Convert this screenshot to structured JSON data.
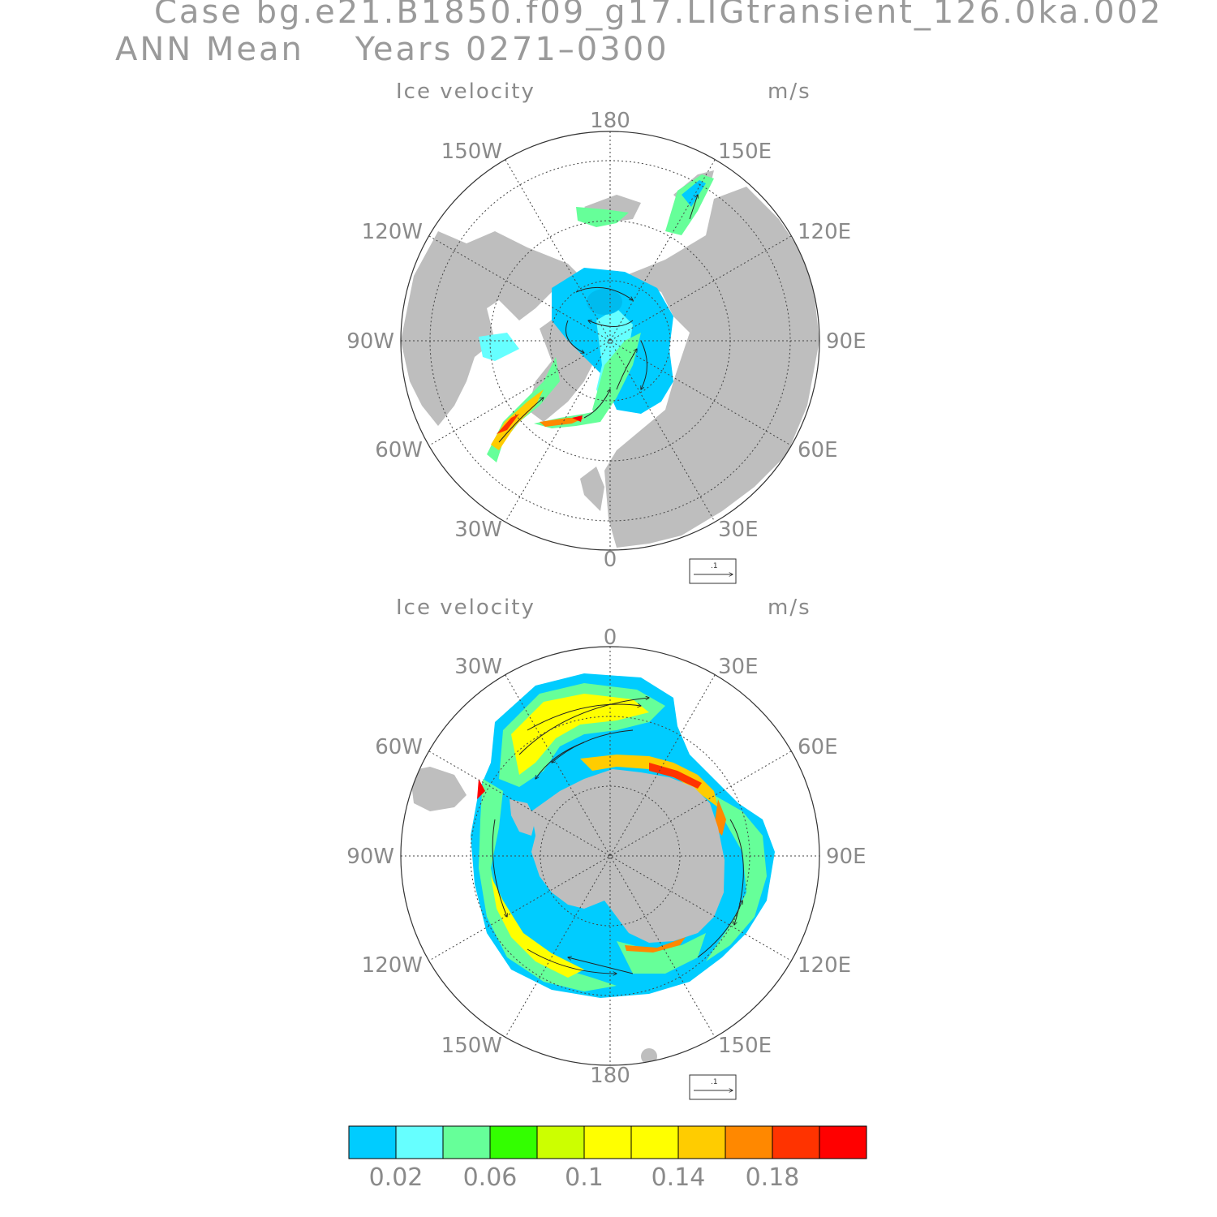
{
  "header": {
    "case_line": "Case bg.e21.B1850.f09_g17.LIGtransient_126.0ka.002",
    "mean_line": "ANN Mean    Years 0271–0300"
  },
  "panels": [
    {
      "id": "north",
      "hemisphere": "north",
      "label": "Ice velocity",
      "units": "m/s",
      "lon_labels": [
        "180",
        "150E",
        "120E",
        "90E",
        "60E",
        "30E",
        "0",
        "30W",
        "60W",
        "90W",
        "120W",
        "150W"
      ],
      "ref_vector_label": ".1"
    },
    {
      "id": "south",
      "hemisphere": "south",
      "label": "Ice velocity",
      "units": "m/s",
      "lon_labels": [
        "0",
        "30E",
        "60E",
        "90E",
        "120E",
        "150E",
        "180",
        "150W",
        "120W",
        "90W",
        "60W",
        "30W"
      ],
      "ref_vector_label": ".1"
    }
  ],
  "colorbar": {
    "colors": [
      "#00ccff",
      "#66ffff",
      "#66ff99",
      "#33ff00",
      "#ccff00",
      "#ffff00",
      "#ffff00",
      "#ffcc00",
      "#ff8800",
      "#ff3300",
      "#ff0000"
    ],
    "labels": [
      "0.02",
      "0.06",
      "0.1",
      "0.14",
      "0.18"
    ]
  },
  "style": {
    "land_color": "#bebebe",
    "grid_color": "#444444"
  }
}
